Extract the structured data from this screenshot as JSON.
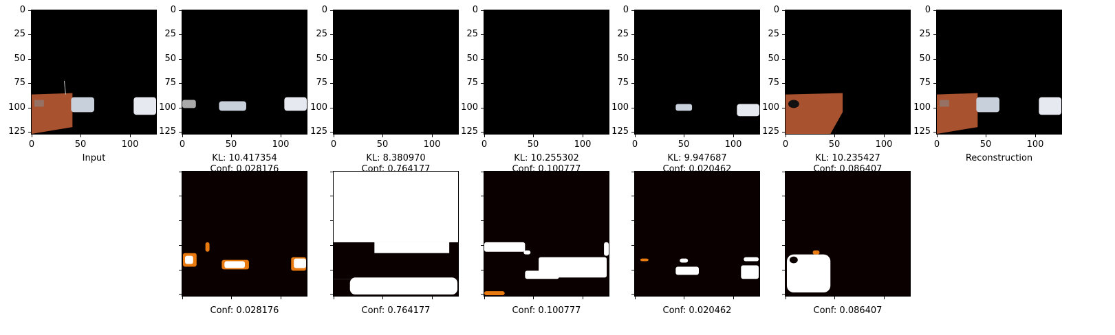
{
  "top_panels": [
    {
      "caption": "Input",
      "kl": "",
      "conf": ""
    },
    {
      "caption": "",
      "kl": "KL: 10.417354",
      "conf": "Conf: 0.028176"
    },
    {
      "caption": "",
      "kl": "KL: 8.380970",
      "conf": "Conf: 0.764177"
    },
    {
      "caption": "",
      "kl": "KL: 10.255302",
      "conf": "Conf: 0.100777"
    },
    {
      "caption": "",
      "kl": "KL: 9.947687",
      "conf": "Conf: 0.020462"
    },
    {
      "caption": "",
      "kl": "KL: 10.235427",
      "conf": "Conf: 0.086407"
    },
    {
      "caption": "Reconstruction",
      "kl": "",
      "conf": ""
    }
  ],
  "y_ticks": [
    "0",
    "25",
    "50",
    "75",
    "100",
    "125"
  ],
  "x_ticks": [
    "0",
    "50",
    "100"
  ],
  "bottom_panels": [
    {
      "caption": "Conf: 0.028176"
    },
    {
      "caption": "Conf: 0.764177"
    },
    {
      "caption": "Conf: 0.100777"
    },
    {
      "caption": "Conf: 0.020462"
    },
    {
      "caption": "Conf: 0.086407"
    }
  ],
  "colors": {
    "heat_dark": "#0b0000",
    "heat_hot": "#ffffff",
    "road": "#a8522f",
    "car": "#c8d0dc"
  }
}
